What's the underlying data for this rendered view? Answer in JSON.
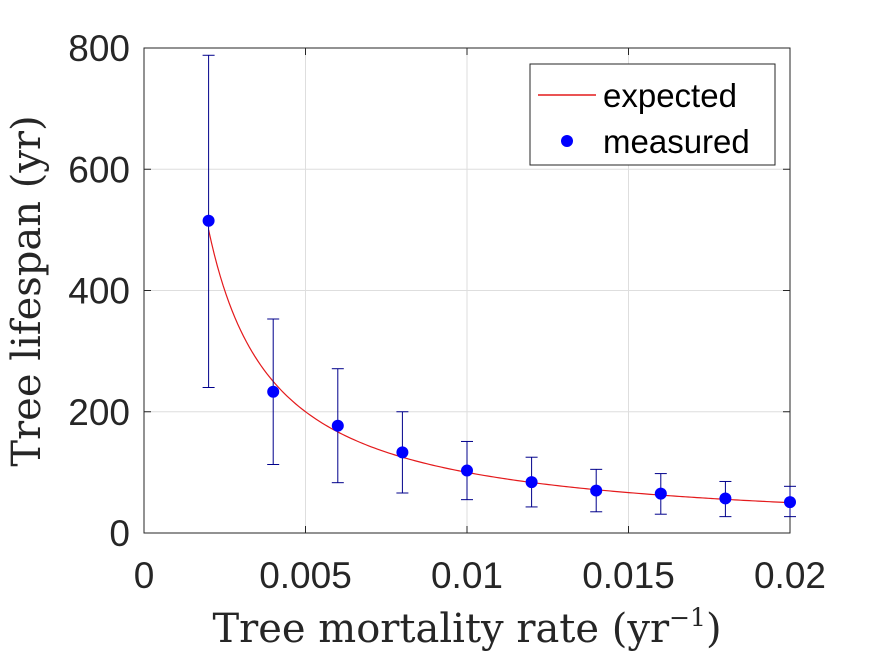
{
  "chart_data": {
    "type": "scatter",
    "xlabel": "Tree mortality rate (yr",
    "xlabel_superscript": "−1",
    "xlabel_suffix": ")",
    "ylabel": "Tree lifespan (yr)",
    "xlim": [
      0,
      0.02
    ],
    "ylim": [
      0,
      800
    ],
    "xticks": [
      0,
      0.005,
      0.01,
      0.015,
      0.02
    ],
    "xtick_labels": [
      "0",
      "0.005",
      "0.01",
      "0.015",
      "0.02"
    ],
    "yticks": [
      0,
      200,
      400,
      600,
      800
    ],
    "ytick_labels": [
      "0",
      "200",
      "400",
      "600",
      "800"
    ],
    "grid": true,
    "legend_position": "top-right",
    "series": [
      {
        "name": "expected",
        "style": "line",
        "color": "#e41a1c",
        "function": "1/x",
        "x_range": [
          0.002,
          0.02
        ]
      },
      {
        "name": "measured",
        "style": "marker-errorbar",
        "color": "#0000ff",
        "errorbar_color": "#00008b",
        "x": [
          0.002,
          0.004,
          0.006,
          0.008,
          0.01,
          0.012,
          0.014,
          0.016,
          0.018,
          0.02
        ],
        "y": [
          515,
          233,
          177,
          133,
          103,
          84,
          70,
          65,
          57,
          51
        ],
        "y_lower": [
          240,
          113,
          83,
          66,
          55,
          43,
          35,
          31,
          27,
          27
        ],
        "y_upper": [
          788,
          353,
          271,
          200,
          151,
          125,
          105,
          98,
          85,
          77
        ]
      }
    ]
  }
}
